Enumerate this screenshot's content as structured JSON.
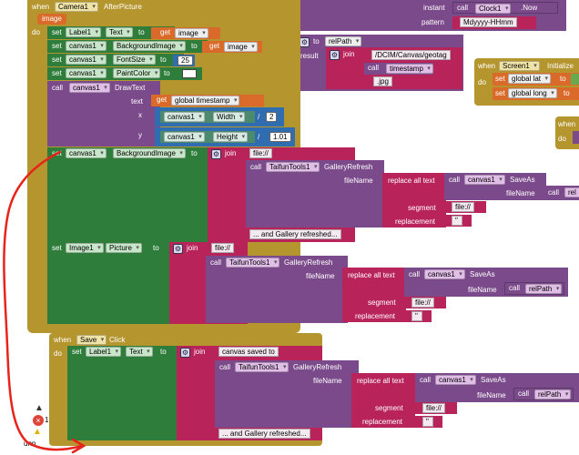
{
  "colors": {
    "event": "#B5962E",
    "setter": "#2E7D3B",
    "procedure": "#7B4A8A",
    "text": "#B8245A",
    "math": "#2F6DB0",
    "variable": "#D96A2A",
    "annotation": "#E8231B"
  },
  "kw": {
    "when": "when",
    "do": "do",
    "set": "set",
    "to": "to",
    "get": "get",
    "call": "call",
    "join": "join",
    "result": "result",
    "pipe": "|",
    "gear": "⚙",
    "slash": "/",
    "quote": "\""
  },
  "camera": {
    "component": "Camera1",
    "event": "AfterPicture",
    "param": "image",
    "s1": {
      "comp": "Label1",
      "prop": "Text",
      "val": "image"
    },
    "s2": {
      "comp": "canvas1",
      "prop": "BackgroundImage",
      "val": "image"
    },
    "s3": {
      "comp": "canvas1",
      "prop": "FontSize",
      "val": "25"
    },
    "s4": {
      "comp": "canvas1",
      "prop": "PaintColor"
    },
    "draw": {
      "comp": "canvas1",
      "method": "DrawText",
      "text_lbl": "text",
      "x_lbl": "x",
      "y_lbl": "y",
      "var": "global timestamp",
      "x_comp": "canvas1",
      "x_prop": "Width",
      "x_div": "2",
      "y_comp": "canvas1",
      "y_prop": "Height",
      "y_div": "1.01"
    },
    "s5": {
      "comp": "canvas1",
      "prop": "BackgroundImage",
      "file": "file://",
      "tool": "TaifunTools1",
      "method": "GalleryRefresh",
      "filename_lbl": "fileName",
      "replace": "replace all text",
      "saveas_comp": "canvas1",
      "saveas": "SaveAs",
      "segment_lbl": "segment",
      "segment": "file://",
      "replacement_lbl": "replacement",
      "suffix": "... and Gallery refreshed..."
    },
    "s6": {
      "comp": "Image1",
      "prop": "Picture",
      "file": "file://",
      "tool": "TaifunTools1",
      "method": "GalleryRefresh",
      "filename_lbl": "fileName",
      "replace": "replace all text",
      "saveas_comp": "canvas1",
      "saveas": "SaveAs",
      "fn_lbl": "fileName",
      "fn_call": "relPath",
      "segment_lbl": "segment",
      "segment": "file://",
      "replacement_lbl": "replacement"
    }
  },
  "top": {
    "instant": "instant",
    "clock": "Clock1",
    "now": ".Now",
    "pattern_lbl": "pattern",
    "pattern": "Mdyyyy-HHmm",
    "relpath": {
      "name": "relPath",
      "path": "/DCIM/Canvas/geotag",
      "call_lbl": "call",
      "timestamp": "timestamp",
      "ext": ".jpg"
    },
    "fn_lbl": "fileName",
    "fn_call": "rel"
  },
  "screen": {
    "component": "Screen1",
    "event": "Initialize",
    "v1": "global lat",
    "v2": "global long",
    "to1": "L",
    "to2": ""
  },
  "right_when": {
    "when": "when",
    "do": "do"
  },
  "save": {
    "component": "Save",
    "event": "Click",
    "comp": "Label1",
    "prop": "Text",
    "msg": "canvas saved to ",
    "tool": "TaifunTools1",
    "method": "GalleryRefresh",
    "filename_lbl": "fileName",
    "replace": "replace all text",
    "saveas_comp": "canvas1",
    "saveas": "SaveAs",
    "fn_lbl": "fileName",
    "fn_call": "relPath",
    "segment_lbl": "segment",
    "segment": "file://",
    "replacement_lbl": "replacement",
    "suffix": "... and Gallery refreshed..."
  },
  "misc": {
    "bottom": "unn",
    "badge": "1"
  }
}
